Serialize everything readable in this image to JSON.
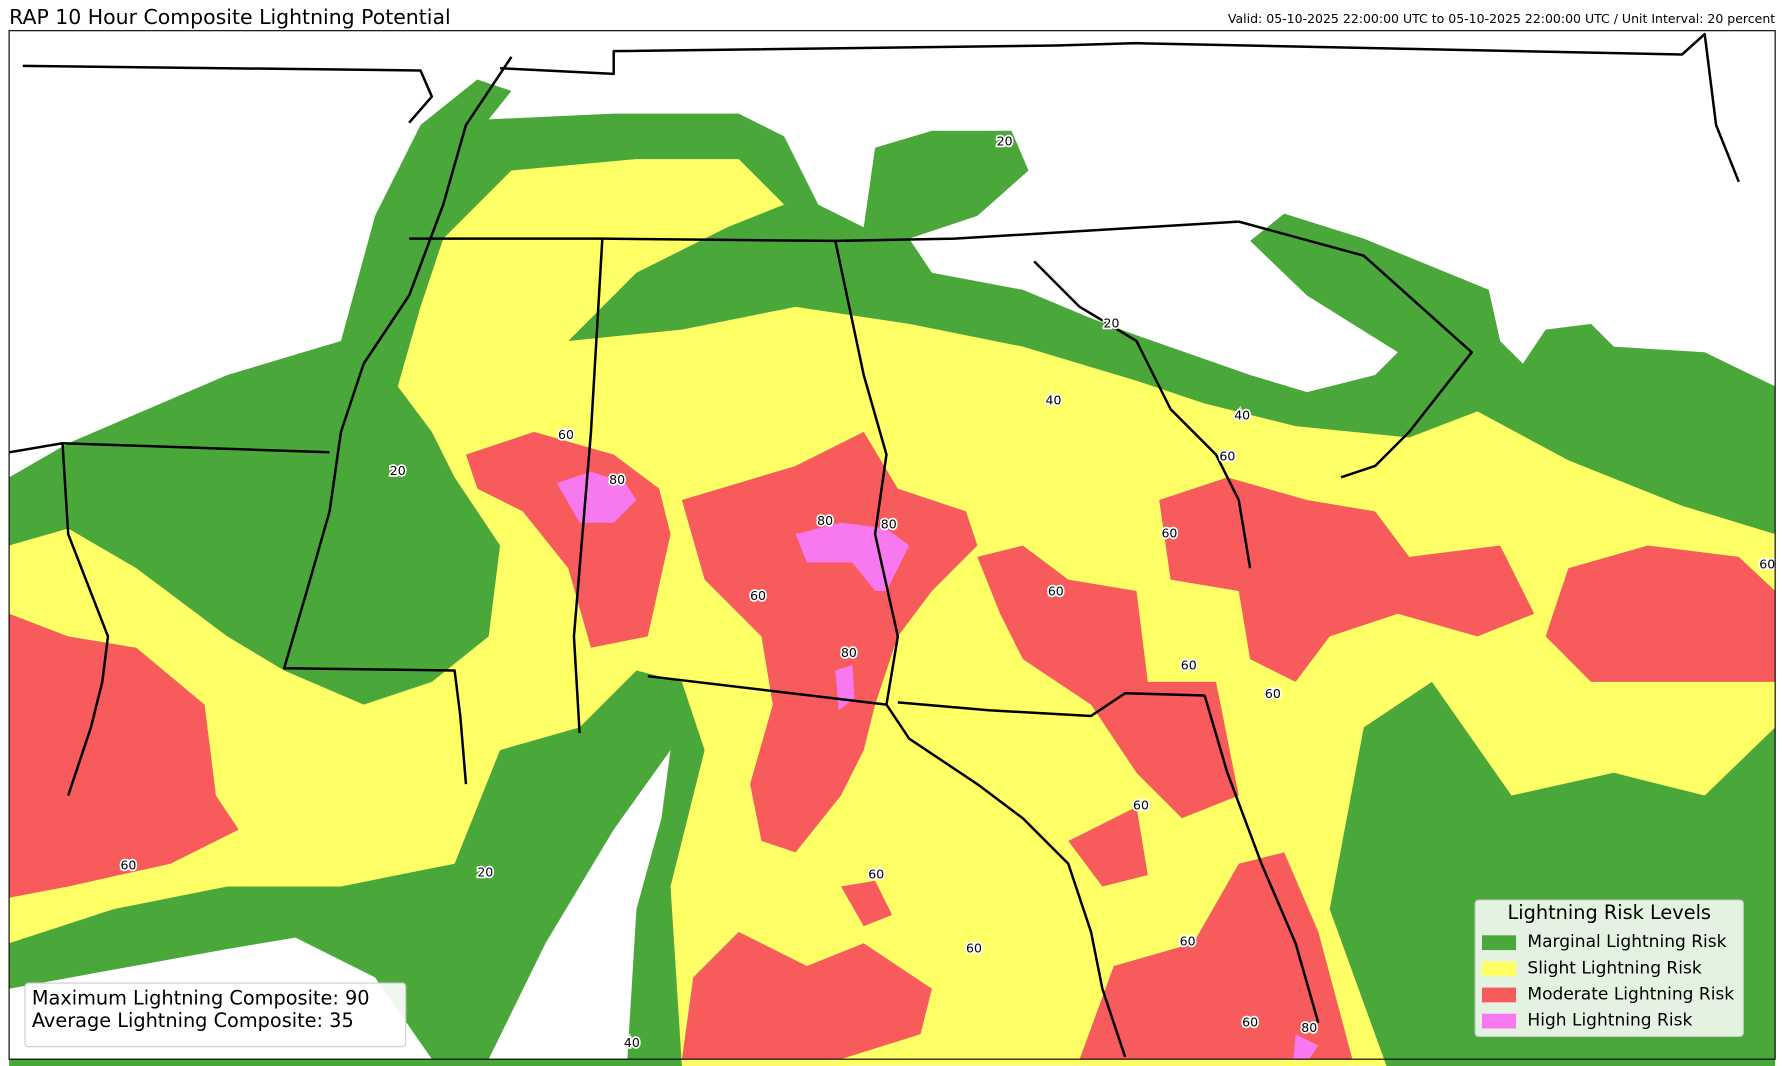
{
  "header": {
    "title": "RAP 10 Hour Composite Lightning Potential",
    "valid": "Valid: 05-10-2025 22:00:00 UTC to 05-10-2025 22:00:00 UTC / Unit Interval: 20 percent"
  },
  "legend": {
    "title": "Lightning Risk Levels",
    "items": [
      {
        "label": "Marginal Lightning Risk",
        "color": "#4aa83a"
      },
      {
        "label": "Slight Lightning Risk",
        "color": "#ffff66"
      },
      {
        "label": "Moderate Lightning Risk",
        "color": "#f75b5b"
      },
      {
        "label": "High Lightning Risk",
        "color": "#f878f0"
      }
    ]
  },
  "stats": {
    "max": "Maximum Lightning Composite: 90",
    "avg": "Average Lightning Composite: 35"
  },
  "contour_labels": [
    "20",
    "20",
    "20",
    "20",
    "40",
    "40",
    "40",
    "60",
    "60",
    "60",
    "60",
    "60",
    "60",
    "60",
    "60",
    "60",
    "60",
    "60",
    "60",
    "60",
    "60",
    "80",
    "80",
    "80",
    "80",
    "80"
  ]
}
